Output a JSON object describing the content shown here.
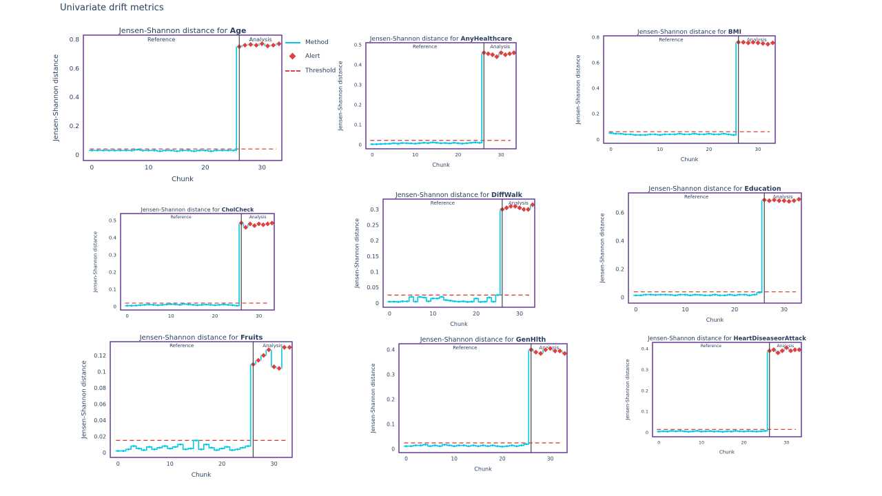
{
  "page": {
    "title": "Univariate drift metrics"
  },
  "legend": {
    "method": "Method",
    "alert": "Alert",
    "threshold": "Threshold"
  },
  "colors": {
    "method": "#00c8e5",
    "alert": "#dd4040",
    "threshold": "#dd4040",
    "frame": "#5b2c91",
    "divider": "#444444"
  },
  "chart_data": [
    {
      "type": "line",
      "feature": "Age",
      "title_prefix": "Jensen-Shannon distance for ",
      "xlabel": "Chunk",
      "ylabel": "Jensen-Shannon distance",
      "ylim": [
        -0.04,
        0.83
      ],
      "xlim": [
        -1.5,
        33.5
      ],
      "yticks": [
        0,
        0.2,
        0.4,
        0.6,
        0.8
      ],
      "xticks": [
        0,
        10,
        20,
        30
      ],
      "reference_label": "Reference",
      "analysis_label": "Analysis",
      "threshold": 0.04,
      "split": 26,
      "values": [
        0.03,
        0.03,
        0.03,
        0.03,
        0.03,
        0.03,
        0.03,
        0.03,
        0.035,
        0.03,
        0.03,
        0.03,
        0.025,
        0.03,
        0.03,
        0.025,
        0.03,
        0.03,
        0.025,
        0.03,
        0.03,
        0.025,
        0.03,
        0.03,
        0.03,
        0.03,
        0.75,
        0.76,
        0.765,
        0.76,
        0.77,
        0.755,
        0.76,
        0.77
      ]
    },
    {
      "type": "line",
      "feature": "AnyHealthcare",
      "title_prefix": "Jensen-Shannon distance for ",
      "xlabel": "Chunk",
      "ylabel": "Jensen-Shannon distance",
      "ylim": [
        -0.02,
        0.51
      ],
      "xlim": [
        -1.5,
        33.5
      ],
      "yticks": [
        0,
        0.1,
        0.2,
        0.3,
        0.4,
        0.5
      ],
      "xticks": [
        0,
        10,
        20,
        30
      ],
      "reference_label": "Reference",
      "analysis_label": "Analysis",
      "threshold": 0.022,
      "split": 26,
      "values": [
        0.003,
        0.003,
        0.004,
        0.005,
        0.005,
        0.008,
        0.006,
        0.009,
        0.008,
        0.007,
        0.006,
        0.008,
        0.01,
        0.009,
        0.012,
        0.01,
        0.008,
        0.009,
        0.007,
        0.01,
        0.008,
        0.006,
        0.008,
        0.01,
        0.012,
        0.01,
        0.46,
        0.455,
        0.45,
        0.44,
        0.46,
        0.45,
        0.455,
        0.46
      ]
    },
    {
      "type": "line",
      "feature": "BMI",
      "title_prefix": "Jensen-Shannon distance for ",
      "xlabel": "Chunk",
      "ylabel": "Jensen-Shannon distance",
      "ylim": [
        -0.03,
        0.81
      ],
      "xlim": [
        -1.5,
        33.5
      ],
      "yticks": [
        0,
        0.2,
        0.4,
        0.6,
        0.8
      ],
      "xticks": [
        0,
        10,
        20,
        30
      ],
      "reference_label": "Reference",
      "analysis_label": "Analysis",
      "threshold": 0.06,
      "split": 26,
      "values": [
        0.05,
        0.045,
        0.045,
        0.04,
        0.04,
        0.035,
        0.035,
        0.035,
        0.04,
        0.04,
        0.035,
        0.04,
        0.04,
        0.04,
        0.045,
        0.04,
        0.04,
        0.045,
        0.04,
        0.04,
        0.045,
        0.04,
        0.04,
        0.045,
        0.04,
        0.035,
        0.76,
        0.76,
        0.755,
        0.76,
        0.755,
        0.75,
        0.745,
        0.755
      ]
    },
    {
      "type": "line",
      "feature": "CholCheck",
      "title_prefix": "Jensen-Shannon distance for ",
      "xlabel": "",
      "ylabel": "Jensen-Shannon distance",
      "ylim": [
        -0.02,
        0.54
      ],
      "xlim": [
        -1.5,
        33.5
      ],
      "yticks": [
        0,
        0.1,
        0.2,
        0.3,
        0.4,
        0.5
      ],
      "xticks": [
        0,
        10,
        20,
        30
      ],
      "reference_label": "Reference",
      "analysis_label": "Analysis",
      "threshold": 0.02,
      "split": 26,
      "values": [
        0.005,
        0.005,
        0.006,
        0.008,
        0.01,
        0.012,
        0.01,
        0.008,
        0.01,
        0.012,
        0.014,
        0.012,
        0.01,
        0.015,
        0.012,
        0.01,
        0.008,
        0.01,
        0.012,
        0.01,
        0.008,
        0.01,
        0.012,
        0.01,
        0.008,
        0.005,
        0.485,
        0.46,
        0.48,
        0.47,
        0.48,
        0.475,
        0.48,
        0.485
      ]
    },
    {
      "type": "line",
      "feature": "DiffWalk",
      "title_prefix": "Jensen-Shannon distance for ",
      "xlabel": "Chunk",
      "ylabel": "Jensen-Shannon distance",
      "ylim": [
        -0.013,
        0.333
      ],
      "xlim": [
        -1.5,
        33.5
      ],
      "yticks": [
        0,
        0.05,
        0.1,
        0.15,
        0.2,
        0.25,
        0.3
      ],
      "xticks": [
        0,
        10,
        20,
        30
      ],
      "reference_label": "Reference",
      "analysis_label": "Analysis",
      "threshold": 0.026,
      "split": 26,
      "values": [
        0.005,
        0.005,
        0.004,
        0.006,
        0.006,
        0.02,
        0.005,
        0.02,
        0.018,
        0.006,
        0.015,
        0.015,
        0.02,
        0.01,
        0.008,
        0.006,
        0.005,
        0.006,
        0.004,
        0.005,
        0.015,
        0.004,
        0.005,
        0.018,
        0.005,
        0.026,
        0.3,
        0.305,
        0.31,
        0.31,
        0.305,
        0.3,
        0.3,
        0.315
      ]
    },
    {
      "type": "line",
      "feature": "Education",
      "title_prefix": "Jensen-Shannon distance for ",
      "xlabel": "Chunk",
      "ylabel": "Jensen-Shannon distance",
      "ylim": [
        -0.04,
        0.74
      ],
      "xlim": [
        -1.5,
        33.5
      ],
      "yticks": [
        0,
        0.2,
        0.4,
        0.6
      ],
      "xticks": [
        0,
        10,
        20,
        30
      ],
      "reference_label": "Reference",
      "analysis_label": "Analysis",
      "threshold": 0.04,
      "split": 26,
      "values": [
        0.015,
        0.015,
        0.02,
        0.02,
        0.018,
        0.02,
        0.02,
        0.018,
        0.015,
        0.02,
        0.02,
        0.015,
        0.02,
        0.018,
        0.015,
        0.015,
        0.02,
        0.015,
        0.015,
        0.02,
        0.015,
        0.02,
        0.02,
        0.015,
        0.02,
        0.035,
        0.69,
        0.685,
        0.69,
        0.685,
        0.685,
        0.68,
        0.685,
        0.695
      ]
    },
    {
      "type": "line",
      "feature": "Fruits",
      "title_prefix": "Jensen-Shannon distance for ",
      "xlabel": "Chunk",
      "ylabel": "Jensen-Shannon distance",
      "ylim": [
        -0.006,
        0.137
      ],
      "xlim": [
        -1.5,
        33.5
      ],
      "yticks": [
        0,
        0.02,
        0.04,
        0.06,
        0.08,
        0.1,
        0.12
      ],
      "xticks": [
        0,
        10,
        20,
        30
      ],
      "reference_label": "Reference",
      "analysis_label": "Analysis",
      "threshold": 0.015,
      "split": 26,
      "values": [
        0.002,
        0.002,
        0.004,
        0.008,
        0.005,
        0.003,
        0.007,
        0.004,
        0.006,
        0.008,
        0.005,
        0.007,
        0.01,
        0.004,
        0.005,
        0.015,
        0.004,
        0.01,
        0.006,
        0.003,
        0.005,
        0.007,
        0.003,
        0.004,
        0.006,
        0.008,
        0.109,
        0.114,
        0.12,
        0.127,
        0.106,
        0.104,
        0.13,
        0.13
      ]
    },
    {
      "type": "line",
      "feature": "GenHlth",
      "title_prefix": "Jensen-Shannon distance for ",
      "xlabel": "Chunk",
      "ylabel": "Jensen-Shannon distance",
      "ylim": [
        -0.014,
        0.424
      ],
      "xlim": [
        -1.5,
        33.5
      ],
      "yticks": [
        0,
        0.1,
        0.2,
        0.3,
        0.4
      ],
      "xticks": [
        0,
        10,
        20,
        30
      ],
      "reference_label": "Reference",
      "analysis_label": "Analysis",
      "threshold": 0.025,
      "split": 26,
      "values": [
        0.012,
        0.012,
        0.015,
        0.015,
        0.018,
        0.012,
        0.015,
        0.012,
        0.018,
        0.015,
        0.012,
        0.015,
        0.015,
        0.012,
        0.015,
        0.012,
        0.015,
        0.012,
        0.015,
        0.012,
        0.01,
        0.012,
        0.015,
        0.012,
        0.015,
        0.02,
        0.4,
        0.39,
        0.385,
        0.4,
        0.405,
        0.395,
        0.395,
        0.385
      ]
    },
    {
      "type": "line",
      "feature": "HeartDiseaseorAttack",
      "title_prefix": "Jensen-Shannon distance for ",
      "xlabel": "Chunk",
      "ylabel": "Jensen-Shannon distance",
      "ylim": [
        -0.02,
        0.43
      ],
      "xlim": [
        -1.5,
        33.5
      ],
      "yticks": [
        0,
        0.1,
        0.2,
        0.3,
        0.4
      ],
      "xticks": [
        0,
        10,
        20,
        30
      ],
      "reference_label": "Reference",
      "analysis_label": "Analysis",
      "threshold": 0.015,
      "split": 26,
      "values": [
        0.005,
        0.006,
        0.005,
        0.008,
        0.006,
        0.008,
        0.006,
        0.004,
        0.006,
        0.008,
        0.005,
        0.006,
        0.007,
        0.005,
        0.006,
        0.004,
        0.006,
        0.005,
        0.008,
        0.006,
        0.005,
        0.007,
        0.006,
        0.005,
        0.006,
        0.008,
        0.39,
        0.395,
        0.38,
        0.39,
        0.405,
        0.39,
        0.395,
        0.395
      ]
    }
  ]
}
